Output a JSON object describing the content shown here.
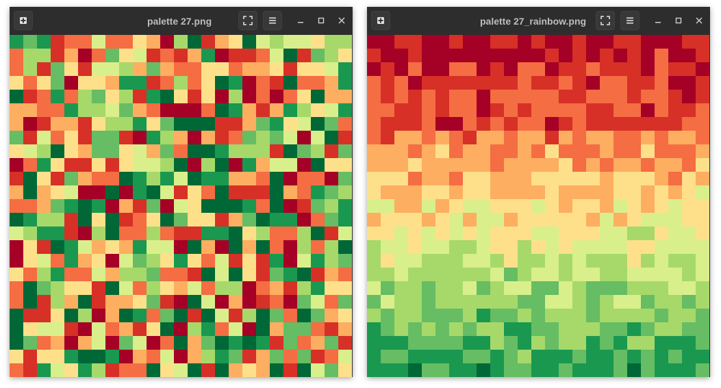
{
  "palette": {
    "colors": [
      "#a50026",
      "#d73027",
      "#f46d43",
      "#fdae61",
      "#fee08b",
      "#d9ef8b",
      "#a6d96a",
      "#66bd63",
      "#1a9850",
      "#006837"
    ]
  },
  "windows": [
    {
      "title": "palette 27.png",
      "image": {
        "arrangement": "random"
      },
      "buttons": {
        "new": "plus-icon",
        "fit": "fit-screen-icon",
        "menu": "hamburger-icon"
      },
      "controls": {
        "minimize": "minimize-icon",
        "maximize": "maximize-icon",
        "close": "close-icon"
      }
    },
    {
      "title": "palette 27_rainbow.png",
      "image": {
        "arrangement": "sorted by hue, top to bottom"
      },
      "buttons": {
        "new": "plus-icon",
        "fit": "fit-screen-icon",
        "menu": "hamburger-icon"
      },
      "controls": {
        "minimize": "minimize-icon",
        "maximize": "maximize-icon",
        "close": "close-icon"
      }
    }
  ]
}
